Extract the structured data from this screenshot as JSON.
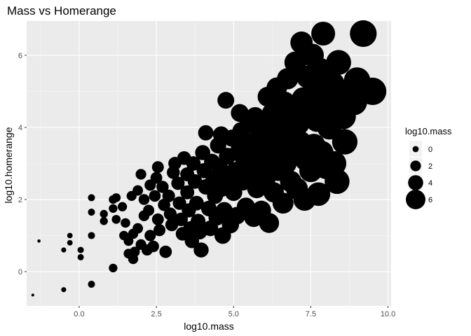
{
  "chart_data": {
    "type": "scatter",
    "title": "Mass vs Homerange",
    "xlabel": "log10.mass",
    "ylabel": "log10.homerange",
    "xlim": [
      -1.7,
      10.1
    ],
    "ylim": [
      -0.95,
      6.95
    ],
    "x_ticks": [
      0.0,
      2.5,
      5.0,
      7.5,
      10.0
    ],
    "x_tick_labels": [
      "0.0",
      "2.5",
      "5.0",
      "7.5",
      "10.0"
    ],
    "y_ticks": [
      0,
      2,
      4,
      6
    ],
    "y_tick_labels": [
      "0",
      "2",
      "4",
      "6"
    ],
    "grid": true,
    "size_variable": "log10.mass",
    "legend": {
      "title": "log10.mass",
      "position": "right",
      "entries": [
        {
          "label": "0",
          "value": 0
        },
        {
          "label": "2",
          "value": 2
        },
        {
          "label": "4",
          "value": 4
        },
        {
          "label": "6",
          "value": 6
        }
      ]
    },
    "points": [
      [
        -1.5,
        -0.65
      ],
      [
        -0.5,
        -0.5
      ],
      [
        0.4,
        -0.35
      ],
      [
        1.1,
        0.1
      ],
      [
        -1.3,
        0.85
      ],
      [
        -0.5,
        0.6
      ],
      [
        -0.3,
        0.8
      ],
      [
        -0.3,
        1.0
      ],
      [
        0.05,
        0.6
      ],
      [
        0.05,
        0.4
      ],
      [
        0.4,
        1.0
      ],
      [
        0.4,
        1.65
      ],
      [
        0.4,
        2.05
      ],
      [
        0.8,
        1.4
      ],
      [
        0.8,
        1.6
      ],
      [
        1.1,
        1.75
      ],
      [
        1.1,
        2.0
      ],
      [
        1.2,
        1.45
      ],
      [
        1.2,
        2.05
      ],
      [
        1.45,
        1.0
      ],
      [
        1.5,
        1.35
      ],
      [
        1.6,
        0.85
      ],
      [
        1.6,
        0.5
      ],
      [
        1.75,
        0.35
      ],
      [
        1.8,
        0.55
      ],
      [
        1.75,
        1.05
      ],
      [
        1.4,
        1.8
      ],
      [
        1.7,
        2.1
      ],
      [
        1.9,
        2.25
      ],
      [
        2.0,
        2.7
      ],
      [
        2.1,
        2.0
      ],
      [
        2.1,
        1.55
      ],
      [
        1.9,
        1.2
      ],
      [
        2.0,
        0.75
      ],
      [
        2.2,
        0.6
      ],
      [
        2.3,
        1.0
      ],
      [
        2.25,
        1.7
      ],
      [
        2.3,
        2.4
      ],
      [
        2.45,
        2.1
      ],
      [
        2.5,
        2.6
      ],
      [
        2.55,
        1.45
      ],
      [
        2.6,
        1.15
      ],
      [
        2.4,
        0.7
      ],
      [
        2.55,
        2.9
      ],
      [
        2.7,
        2.35
      ],
      [
        2.75,
        1.85
      ],
      [
        2.9,
        2.1
      ],
      [
        2.95,
        1.6
      ],
      [
        2.8,
        0.55
      ],
      [
        3.0,
        1.3
      ],
      [
        3.05,
        2.75
      ],
      [
        3.1,
        3.0
      ],
      [
        3.2,
        2.45
      ],
      [
        3.25,
        1.9
      ],
      [
        3.3,
        1.45
      ],
      [
        3.35,
        1.05
      ],
      [
        3.4,
        3.15
      ],
      [
        3.5,
        2.7
      ],
      [
        3.5,
        2.2
      ],
      [
        3.55,
        1.7
      ],
      [
        3.6,
        1.2
      ],
      [
        3.65,
        0.85
      ],
      [
        3.7,
        3.0
      ],
      [
        3.75,
        2.5
      ],
      [
        3.8,
        1.9
      ],
      [
        3.85,
        1.4
      ],
      [
        3.9,
        1.1
      ],
      [
        3.95,
        0.6
      ],
      [
        4.0,
        3.3
      ],
      [
        4.05,
        2.8
      ],
      [
        4.1,
        2.35
      ],
      [
        4.1,
        3.85
      ],
      [
        4.2,
        1.75
      ],
      [
        4.25,
        1.2
      ],
      [
        4.3,
        3.05
      ],
      [
        4.35,
        2.6
      ],
      [
        4.4,
        2.1
      ],
      [
        4.45,
        1.5
      ],
      [
        4.5,
        3.5
      ],
      [
        4.55,
        2.9
      ],
      [
        4.6,
        3.8
      ],
      [
        4.6,
        2.3
      ],
      [
        4.65,
        1.0
      ],
      [
        4.7,
        1.7
      ],
      [
        4.75,
        4.75
      ],
      [
        4.8,
        3.2
      ],
      [
        4.85,
        2.6
      ],
      [
        4.9,
        1.3
      ],
      [
        4.95,
        3.7
      ],
      [
        5.0,
        2.2
      ],
      [
        5.05,
        2.8
      ],
      [
        5.1,
        1.55
      ],
      [
        5.15,
        3.3
      ],
      [
        5.2,
        4.4
      ],
      [
        5.25,
        3.9
      ],
      [
        5.3,
        2.5
      ],
      [
        5.35,
        3.0
      ],
      [
        5.4,
        1.8
      ],
      [
        5.45,
        3.55
      ],
      [
        5.5,
        4.1
      ],
      [
        5.55,
        2.7
      ],
      [
        5.6,
        3.2
      ],
      [
        5.65,
        1.5
      ],
      [
        5.7,
        4.3
      ],
      [
        5.75,
        2.3
      ],
      [
        5.8,
        3.7
      ],
      [
        5.85,
        2.9
      ],
      [
        5.9,
        1.7
      ],
      [
        5.95,
        4.0
      ],
      [
        6.0,
        3.4
      ],
      [
        6.05,
        2.6
      ],
      [
        6.1,
        4.85
      ],
      [
        6.15,
        1.35
      ],
      [
        6.2,
        3.1
      ],
      [
        6.25,
        4.4
      ],
      [
        6.3,
        2.2
      ],
      [
        6.35,
        3.8
      ],
      [
        6.4,
        5.1
      ],
      [
        6.45,
        2.8
      ],
      [
        6.5,
        3.5
      ],
      [
        6.55,
        4.2
      ],
      [
        6.6,
        1.9
      ],
      [
        6.65,
        4.7
      ],
      [
        6.7,
        3.0
      ],
      [
        6.75,
        5.35
      ],
      [
        6.8,
        3.9
      ],
      [
        6.85,
        2.5
      ],
      [
        6.9,
        4.5
      ],
      [
        6.95,
        3.3
      ],
      [
        7.0,
        5.8
      ],
      [
        7.05,
        2.3
      ],
      [
        7.1,
        4.1
      ],
      [
        7.15,
        3.6
      ],
      [
        7.2,
        6.35
      ],
      [
        7.25,
        4.8
      ],
      [
        7.3,
        2.0
      ],
      [
        7.35,
        3.1
      ],
      [
        7.4,
        5.4
      ],
      [
        7.45,
        4.4
      ],
      [
        7.5,
        2.8
      ],
      [
        7.55,
        6.0
      ],
      [
        7.6,
        3.5
      ],
      [
        7.65,
        5.0
      ],
      [
        7.7,
        4.2
      ],
      [
        7.75,
        2.15
      ],
      [
        7.8,
        5.6
      ],
      [
        7.85,
        3.3
      ],
      [
        7.9,
        6.6
      ],
      [
        7.95,
        4.7
      ],
      [
        8.0,
        2.9
      ],
      [
        8.1,
        4.0
      ],
      [
        8.2,
        5.2
      ],
      [
        8.25,
        3.0
      ],
      [
        8.3,
        4.4
      ],
      [
        8.35,
        2.5
      ],
      [
        8.4,
        5.8
      ],
      [
        8.5,
        4.95
      ],
      [
        8.55,
        4.3
      ],
      [
        8.6,
        3.6
      ],
      [
        8.8,
        4.7
      ],
      [
        8.9,
        4.7
      ],
      [
        9.0,
        5.3
      ],
      [
        9.2,
        6.6
      ],
      [
        9.5,
        5.0
      ]
    ]
  }
}
